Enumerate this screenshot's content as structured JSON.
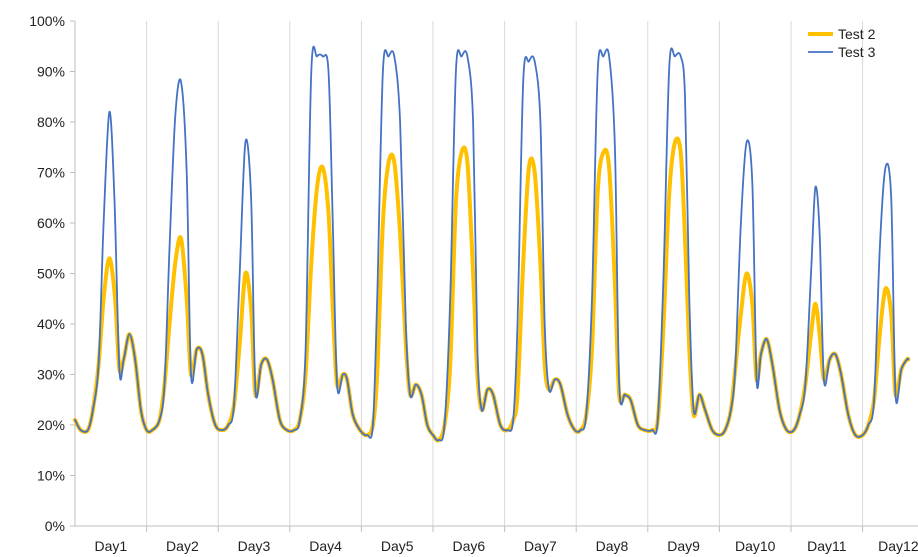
{
  "chart_data": {
    "type": "line",
    "title": "",
    "xlabel": "",
    "ylabel": "",
    "ylim": [
      0,
      100
    ],
    "y_ticks": [
      "0%",
      "10%",
      "20%",
      "30%",
      "40%",
      "50%",
      "60%",
      "70%",
      "80%",
      "90%",
      "100%"
    ],
    "categories": [
      "Day1",
      "Day2",
      "Day3",
      "Day4",
      "Day5",
      "Day6",
      "Day7",
      "Day8",
      "Day9",
      "Day10",
      "Day11",
      "Day12"
    ],
    "x_unit": "day",
    "grid": "vertical",
    "legend": "top-right",
    "series": [
      {
        "name": "Test 2",
        "color": "#FFC000",
        "points": [
          [
            0.0,
            21
          ],
          [
            0.08,
            19
          ],
          [
            0.18,
            19
          ],
          [
            0.25,
            23
          ],
          [
            0.33,
            32
          ],
          [
            0.4,
            45
          ],
          [
            0.48,
            53
          ],
          [
            0.56,
            45
          ],
          [
            0.62,
            31
          ],
          [
            0.68,
            33
          ],
          [
            0.76,
            38
          ],
          [
            0.84,
            33
          ],
          [
            0.92,
            23
          ],
          [
            1.0,
            19
          ],
          [
            1.08,
            19
          ],
          [
            1.18,
            21
          ],
          [
            1.25,
            28
          ],
          [
            1.32,
            40
          ],
          [
            1.4,
            52
          ],
          [
            1.48,
            57
          ],
          [
            1.56,
            45
          ],
          [
            1.62,
            30
          ],
          [
            1.7,
            35
          ],
          [
            1.78,
            34
          ],
          [
            1.86,
            26
          ],
          [
            1.96,
            20
          ],
          [
            2.06,
            19
          ],
          [
            2.14,
            20
          ],
          [
            2.22,
            24
          ],
          [
            2.3,
            36
          ],
          [
            2.38,
            50
          ],
          [
            2.46,
            43
          ],
          [
            2.52,
            26
          ],
          [
            2.6,
            32
          ],
          [
            2.68,
            33
          ],
          [
            2.76,
            29
          ],
          [
            2.86,
            21
          ],
          [
            2.96,
            19
          ],
          [
            3.06,
            19
          ],
          [
            3.14,
            21
          ],
          [
            3.22,
            30
          ],
          [
            3.3,
            52
          ],
          [
            3.38,
            67
          ],
          [
            3.46,
            71
          ],
          [
            3.54,
            62
          ],
          [
            3.6,
            43
          ],
          [
            3.66,
            28
          ],
          [
            3.74,
            30
          ],
          [
            3.8,
            29
          ],
          [
            3.88,
            22
          ],
          [
            3.98,
            19
          ],
          [
            4.08,
            18
          ],
          [
            4.16,
            20
          ],
          [
            4.22,
            30
          ],
          [
            4.3,
            60
          ],
          [
            4.38,
            72
          ],
          [
            4.46,
            72
          ],
          [
            4.54,
            58
          ],
          [
            4.62,
            36
          ],
          [
            4.68,
            26
          ],
          [
            4.76,
            28
          ],
          [
            4.84,
            26
          ],
          [
            4.92,
            20
          ],
          [
            5.0,
            18
          ],
          [
            5.08,
            17
          ],
          [
            5.16,
            20
          ],
          [
            5.24,
            32
          ],
          [
            5.32,
            64
          ],
          [
            5.4,
            74
          ],
          [
            5.48,
            72
          ],
          [
            5.56,
            50
          ],
          [
            5.62,
            30
          ],
          [
            5.68,
            23
          ],
          [
            5.76,
            27
          ],
          [
            5.84,
            26
          ],
          [
            5.94,
            20
          ],
          [
            6.04,
            19
          ],
          [
            6.12,
            21
          ],
          [
            6.18,
            26
          ],
          [
            6.26,
            52
          ],
          [
            6.34,
            71
          ],
          [
            6.42,
            70
          ],
          [
            6.5,
            52
          ],
          [
            6.56,
            32
          ],
          [
            6.62,
            27
          ],
          [
            6.7,
            29
          ],
          [
            6.78,
            28
          ],
          [
            6.88,
            22
          ],
          [
            6.98,
            19
          ],
          [
            7.06,
            19
          ],
          [
            7.14,
            22
          ],
          [
            7.22,
            35
          ],
          [
            7.3,
            66
          ],
          [
            7.38,
            74
          ],
          [
            7.46,
            71
          ],
          [
            7.54,
            48
          ],
          [
            7.6,
            26
          ],
          [
            7.68,
            26
          ],
          [
            7.76,
            25
          ],
          [
            7.86,
            20
          ],
          [
            7.96,
            19
          ],
          [
            8.06,
            19
          ],
          [
            8.14,
            21
          ],
          [
            8.22,
            40
          ],
          [
            8.3,
            66
          ],
          [
            8.38,
            76
          ],
          [
            8.46,
            74
          ],
          [
            8.52,
            57
          ],
          [
            8.58,
            35
          ],
          [
            8.64,
            22
          ],
          [
            8.72,
            26
          ],
          [
            8.8,
            23
          ],
          [
            8.9,
            19
          ],
          [
            9.0,
            18
          ],
          [
            9.08,
            19
          ],
          [
            9.16,
            23
          ],
          [
            9.22,
            31
          ],
          [
            9.3,
            42
          ],
          [
            9.38,
            50
          ],
          [
            9.46,
            44
          ],
          [
            9.52,
            29
          ],
          [
            9.58,
            34
          ],
          [
            9.66,
            37
          ],
          [
            9.74,
            32
          ],
          [
            9.84,
            23
          ],
          [
            9.94,
            19
          ],
          [
            10.04,
            19
          ],
          [
            10.12,
            22
          ],
          [
            10.2,
            28
          ],
          [
            10.28,
            38
          ],
          [
            10.34,
            44
          ],
          [
            10.4,
            38
          ],
          [
            10.46,
            29
          ],
          [
            10.54,
            33
          ],
          [
            10.62,
            34
          ],
          [
            10.7,
            30
          ],
          [
            10.8,
            22
          ],
          [
            10.9,
            18
          ],
          [
            11.0,
            18
          ],
          [
            11.08,
            20
          ],
          [
            11.16,
            25
          ],
          [
            11.24,
            38
          ],
          [
            11.32,
            47
          ],
          [
            11.4,
            42
          ],
          [
            11.46,
            26
          ],
          [
            11.54,
            31
          ],
          [
            11.62,
            33
          ],
          [
            11.64,
            33
          ]
        ]
      },
      {
        "name": "Test 3",
        "color": "#4472C4",
        "points": [
          [
            0.0,
            21
          ],
          [
            0.08,
            19
          ],
          [
            0.18,
            19
          ],
          [
            0.25,
            23
          ],
          [
            0.33,
            32
          ],
          [
            0.4,
            60
          ],
          [
            0.48,
            82
          ],
          [
            0.55,
            65
          ],
          [
            0.62,
            31
          ],
          [
            0.68,
            33
          ],
          [
            0.76,
            38
          ],
          [
            0.84,
            33
          ],
          [
            0.92,
            23
          ],
          [
            1.0,
            19
          ],
          [
            1.08,
            19
          ],
          [
            1.18,
            21
          ],
          [
            1.25,
            28
          ],
          [
            1.32,
            55
          ],
          [
            1.4,
            81
          ],
          [
            1.48,
            88
          ],
          [
            1.56,
            70
          ],
          [
            1.62,
            30
          ],
          [
            1.7,
            35
          ],
          [
            1.78,
            34
          ],
          [
            1.86,
            26
          ],
          [
            1.96,
            20
          ],
          [
            2.06,
            19
          ],
          [
            2.14,
            20
          ],
          [
            2.22,
            24
          ],
          [
            2.3,
            50
          ],
          [
            2.38,
            76
          ],
          [
            2.46,
            65
          ],
          [
            2.52,
            27
          ],
          [
            2.6,
            32
          ],
          [
            2.68,
            33
          ],
          [
            2.76,
            29
          ],
          [
            2.86,
            21
          ],
          [
            2.96,
            19
          ],
          [
            3.06,
            19
          ],
          [
            3.14,
            21
          ],
          [
            3.22,
            35
          ],
          [
            3.3,
            90
          ],
          [
            3.38,
            93
          ],
          [
            3.46,
            93
          ],
          [
            3.54,
            90
          ],
          [
            3.6,
            60
          ],
          [
            3.66,
            28
          ],
          [
            3.74,
            30
          ],
          [
            3.8,
            29
          ],
          [
            3.88,
            22
          ],
          [
            3.98,
            19
          ],
          [
            4.08,
            18
          ],
          [
            4.16,
            20
          ],
          [
            4.22,
            45
          ],
          [
            4.3,
            90
          ],
          [
            4.38,
            93
          ],
          [
            4.46,
            93
          ],
          [
            4.54,
            80
          ],
          [
            4.62,
            40
          ],
          [
            4.68,
            26
          ],
          [
            4.76,
            28
          ],
          [
            4.84,
            26
          ],
          [
            4.92,
            20
          ],
          [
            5.0,
            18
          ],
          [
            5.08,
            17
          ],
          [
            5.16,
            20
          ],
          [
            5.24,
            45
          ],
          [
            5.32,
            90
          ],
          [
            5.4,
            93
          ],
          [
            5.48,
            93
          ],
          [
            5.56,
            80
          ],
          [
            5.62,
            35
          ],
          [
            5.68,
            23
          ],
          [
            5.76,
            27
          ],
          [
            5.84,
            26
          ],
          [
            5.94,
            20
          ],
          [
            6.04,
            19
          ],
          [
            6.12,
            21
          ],
          [
            6.18,
            40
          ],
          [
            6.26,
            88
          ],
          [
            6.34,
            92
          ],
          [
            6.42,
            92
          ],
          [
            6.5,
            80
          ],
          [
            6.56,
            40
          ],
          [
            6.62,
            27
          ],
          [
            6.7,
            29
          ],
          [
            6.78,
            28
          ],
          [
            6.88,
            22
          ],
          [
            6.98,
            19
          ],
          [
            7.06,
            19
          ],
          [
            7.14,
            22
          ],
          [
            7.22,
            45
          ],
          [
            7.3,
            90
          ],
          [
            7.38,
            93
          ],
          [
            7.46,
            93
          ],
          [
            7.54,
            75
          ],
          [
            7.6,
            28
          ],
          [
            7.68,
            26
          ],
          [
            7.76,
            25
          ],
          [
            7.86,
            20
          ],
          [
            7.96,
            19
          ],
          [
            8.06,
            19
          ],
          [
            8.14,
            21
          ],
          [
            8.22,
            50
          ],
          [
            8.3,
            91
          ],
          [
            8.38,
            93
          ],
          [
            8.46,
            93
          ],
          [
            8.52,
            85
          ],
          [
            8.58,
            45
          ],
          [
            8.64,
            23
          ],
          [
            8.72,
            26
          ],
          [
            8.8,
            23
          ],
          [
            8.9,
            19
          ],
          [
            9.0,
            18
          ],
          [
            9.08,
            19
          ],
          [
            9.16,
            23
          ],
          [
            9.22,
            31
          ],
          [
            9.3,
            60
          ],
          [
            9.38,
            76
          ],
          [
            9.46,
            68
          ],
          [
            9.52,
            29
          ],
          [
            9.58,
            34
          ],
          [
            9.66,
            37
          ],
          [
            9.74,
            32
          ],
          [
            9.84,
            23
          ],
          [
            9.94,
            19
          ],
          [
            10.04,
            19
          ],
          [
            10.12,
            22
          ],
          [
            10.2,
            28
          ],
          [
            10.28,
            50
          ],
          [
            10.34,
            67
          ],
          [
            10.4,
            58
          ],
          [
            10.46,
            29
          ],
          [
            10.54,
            33
          ],
          [
            10.62,
            34
          ],
          [
            10.7,
            30
          ],
          [
            10.8,
            22
          ],
          [
            10.9,
            18
          ],
          [
            11.0,
            18
          ],
          [
            11.08,
            20
          ],
          [
            11.16,
            25
          ],
          [
            11.24,
            55
          ],
          [
            11.32,
            71
          ],
          [
            11.4,
            65
          ],
          [
            11.46,
            26
          ],
          [
            11.54,
            31
          ],
          [
            11.62,
            33
          ],
          [
            11.64,
            33
          ]
        ]
      }
    ]
  }
}
